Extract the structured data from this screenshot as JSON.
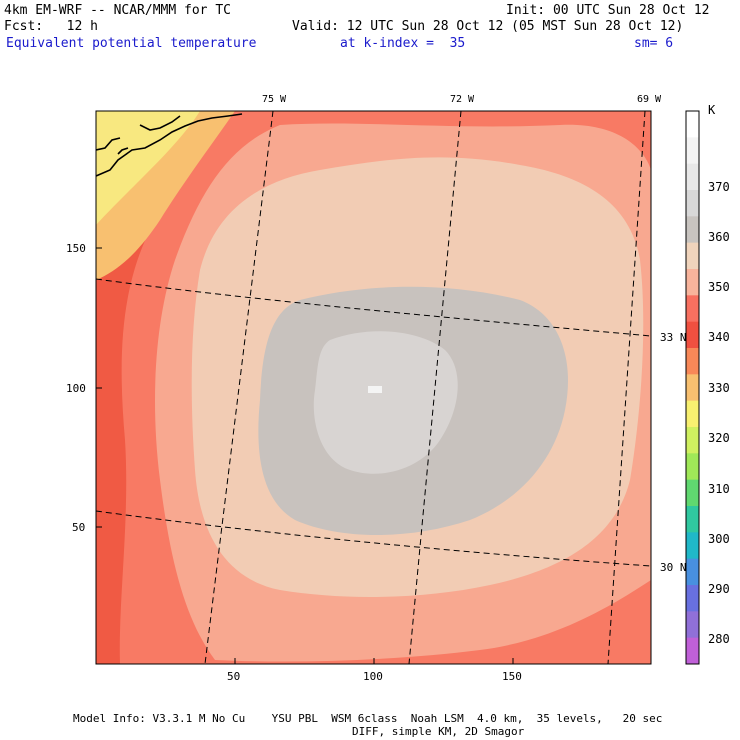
{
  "header": {
    "model": "4km EM-WRF -- NCAR/MMM for TC",
    "init": "Init: 00 UTC Sun 28 Oct 12",
    "forecast": "Fcst:   12 h",
    "valid": "Valid: 12 UTC Sun 28 Oct 12 (05 MST Sun 28 Oct 12)",
    "field": "Equivalent potential temperature",
    "kindex": "at k-index =  35",
    "smooth": "sm= 6"
  },
  "map": {
    "x_ticks": [
      "50",
      "100",
      "150"
    ],
    "y_ticks": [
      "150",
      "100",
      "50"
    ],
    "longitudes": [
      "75 W",
      "72 W",
      "69 W"
    ],
    "latitudes": [
      "33 N",
      "30 N"
    ]
  },
  "colorbar": {
    "unit": "K",
    "labels": [
      "370",
      "360",
      "350",
      "340",
      "330",
      "320",
      "310",
      "300",
      "290",
      "280"
    ],
    "colors": [
      "#ffffff",
      "#f4f4f4",
      "#e8e8e8",
      "#d8d8d8",
      "#c8c4c0",
      "#f0d4bc",
      "#f8b49c",
      "#f87060",
      "#f05040",
      "#f88858",
      "#f8c070",
      "#f8f070",
      "#d0f060",
      "#a0e858",
      "#60d870",
      "#30c8a0",
      "#20b8c8",
      "#4890e0",
      "#6870e0",
      "#9070d8",
      "#c060d8"
    ]
  },
  "footer": {
    "line1": "Model Info: V3.3.1 M No Cu    YSU PBL  WSM 6class  Noah LSM  4.0 km,  35 levels,   20 sec",
    "line2": "DIFF, simple KM, 2D Smagor"
  }
}
